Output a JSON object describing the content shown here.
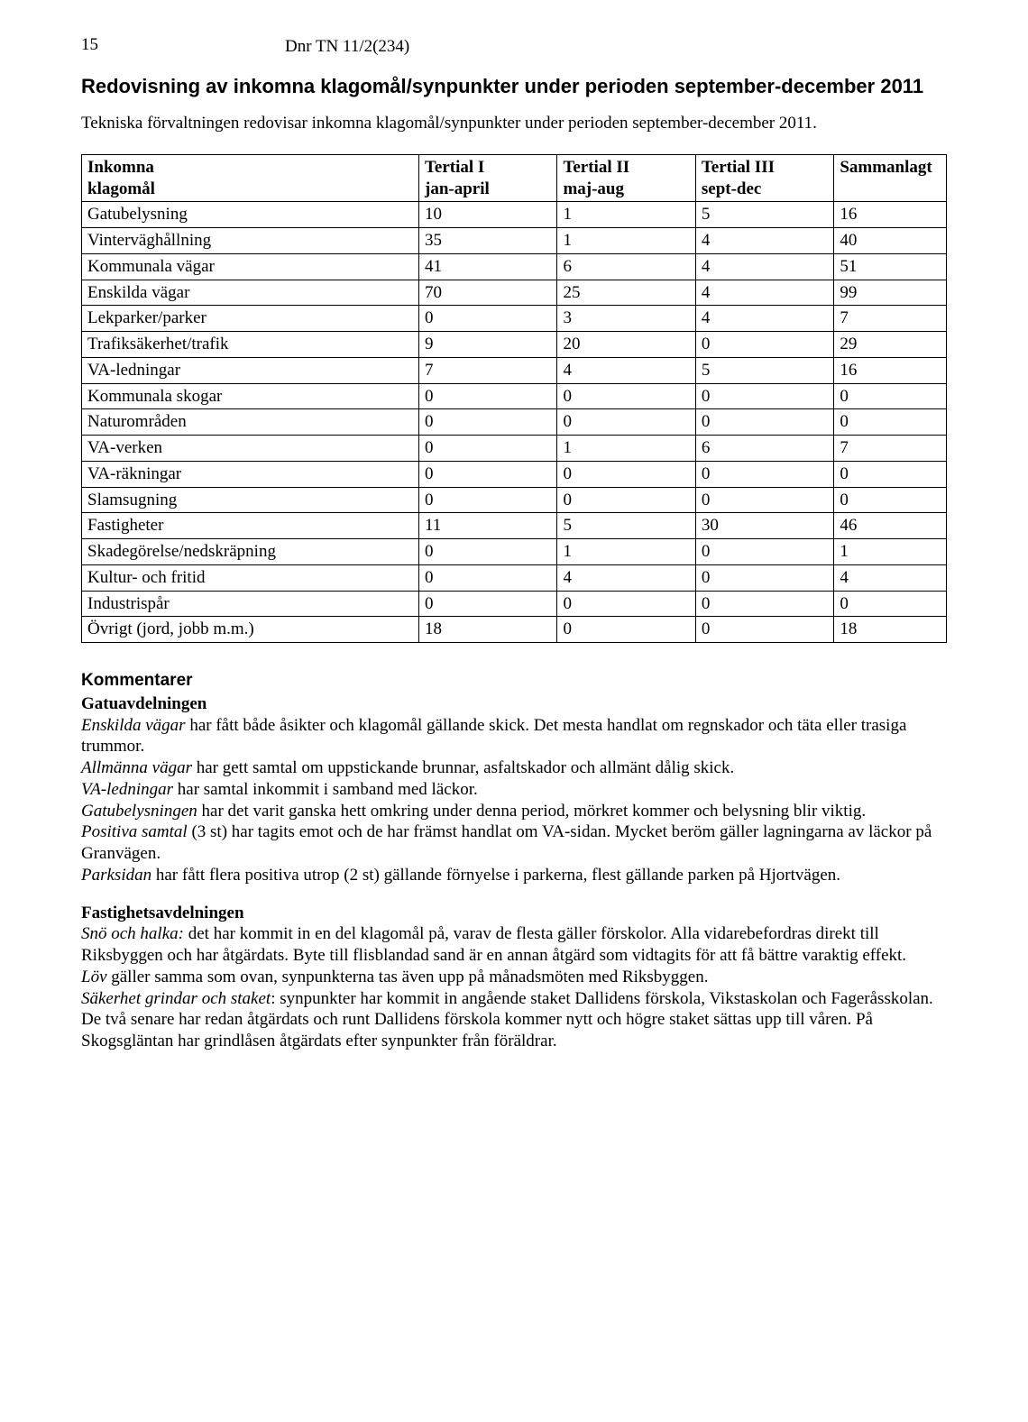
{
  "page_number": "15",
  "dnr": "Dnr TN 11/2(234)",
  "title": "Redovisning av inkomna klagomål/synpunkter under perioden september-december 2011",
  "intro": "Tekniska förvaltningen redovisar inkomna klagomål/synpunkter under perioden september-december 2011.",
  "table": {
    "header": {
      "c0_line1": "Inkomna",
      "c0_line2": "klagomål",
      "c1_line1": "Tertial I",
      "c1_line2": "jan-april",
      "c2_line1": "Tertial II",
      "c2_line2": "maj-aug",
      "c3_line1": "Tertial III",
      "c3_line2": "sept-dec",
      "c4": "Sammanlagt"
    },
    "rows": [
      {
        "label": "Gatubelysning",
        "t1": "10",
        "t2": "1",
        "t3": "5",
        "sum": "16"
      },
      {
        "label": "Vinterväghållning",
        "t1": "35",
        "t2": "1",
        "t3": "4",
        "sum": "40"
      },
      {
        "label": "Kommunala vägar",
        "t1": "41",
        "t2": "6",
        "t3": "4",
        "sum": "51"
      },
      {
        "label": "Enskilda vägar",
        "t1": "70",
        "t2": "25",
        "t3": "4",
        "sum": "99"
      },
      {
        "label": "Lekparker/parker",
        "t1": "0",
        "t2": "3",
        "t3": "4",
        "sum": "7"
      },
      {
        "label": "Trafiksäkerhet/trafik",
        "t1": "9",
        "t2": "20",
        "t3": "0",
        "sum": "29"
      },
      {
        "label": "VA-ledningar",
        "t1": "7",
        "t2": "4",
        "t3": "5",
        "sum": "16"
      },
      {
        "label": "Kommunala skogar",
        "t1": "0",
        "t2": "0",
        "t3": "0",
        "sum": "0"
      },
      {
        "label": "Naturområden",
        "t1": "0",
        "t2": "0",
        "t3": "0",
        "sum": "0"
      },
      {
        "label": "VA-verken",
        "t1": "0",
        "t2": "1",
        "t3": "6",
        "sum": "7"
      },
      {
        "label": "VA-räkningar",
        "t1": "0",
        "t2": "0",
        "t3": "0",
        "sum": "0"
      },
      {
        "label": "Slamsugning",
        "t1": "0",
        "t2": "0",
        "t3": "0",
        "sum": "0"
      },
      {
        "label": "Fastigheter",
        "t1": "11",
        "t2": "5",
        "t3": "30",
        "sum": "46"
      },
      {
        "label": "Skadegörelse/nedskräpning",
        "t1": "0",
        "t2": "1",
        "t3": "0",
        "sum": "1"
      },
      {
        "label": "Kultur- och fritid",
        "t1": "0",
        "t2": "4",
        "t3": "0",
        "sum": "4"
      },
      {
        "label": "Industrispår",
        "t1": "0",
        "t2": "0",
        "t3": "0",
        "sum": "0"
      },
      {
        "label": "Övrigt (jord, jobb m.m.)",
        "t1": "18",
        "t2": "0",
        "t3": "0",
        "sum": "18"
      }
    ]
  },
  "comments": {
    "heading": "Kommentarer",
    "gatu": {
      "heading": "Gatuavdelningen",
      "p1_i": "Enskilda vägar",
      "p1_r": " har fått både åsikter och klagomål gällande skick. Det mesta handlat om regnskador och täta eller trasiga trummor.",
      "p2_i": "Allmänna vägar",
      "p2_r": " har gett samtal om uppstickande brunnar, asfaltskador och allmänt dålig skick.",
      "p3_i": "VA-ledningar",
      "p3_r": " har samtal inkommit i samband med läckor.",
      "p4_i": "Gatubelysningen",
      "p4_r": " har det varit ganska hett omkring under denna period, mörkret kommer och belysning blir viktig.",
      "p5_i": "Positiva samtal",
      "p5_r": " (3 st) har tagits emot och de har främst handlat om VA-sidan. Mycket beröm gäller lagningarna av läckor på Granvägen.",
      "p6_i": "Parksidan",
      "p6_r": " har fått flera positiva utrop (2 st) gällande förnyelse i parkerna, flest gällande parken på Hjortvägen."
    },
    "fast": {
      "heading": "Fastighetsavdelningen",
      "p1_i": "Snö och halka:",
      "p1_r": " det har kommit in en del klagomål på, varav de flesta gäller förskolor. Alla vidarebefordras direkt till Riksbyggen och har åtgärdats. Byte till flisblandad sand är en annan åtgärd som vidtagits för att få bättre varaktig effekt.",
      "p2_i": "Löv",
      "p2_r": " gäller samma som ovan, synpunkterna tas även upp på månadsmöten med Riksbyggen.",
      "p3_i": "Säkerhet grindar och staket",
      "p3_r": ": synpunkter har kommit in angående staket Dallidens förskola, Vikstaskolan och Fageråsskolan. De två senare har redan åtgärdats och runt Dallidens förskola kommer nytt och högre staket sättas upp till våren. På Skogsgläntan har grindlåsen åtgärdats efter synpunkter från föräldrar."
    }
  }
}
